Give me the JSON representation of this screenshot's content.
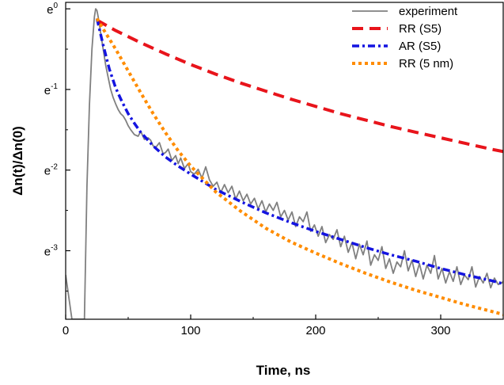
{
  "chart_data": {
    "type": "line",
    "title": "",
    "xlabel": "Time, ns",
    "ylabel": "Δn(t)/Δn(0)",
    "y_scale": "ln",
    "xlim": [
      0,
      350
    ],
    "ylim": [
      -3.85,
      0.08
    ],
    "x_ticks": [
      0,
      100,
      200,
      300
    ],
    "x_tick_labels": [
      "0",
      "100",
      "200",
      "300"
    ],
    "y_ticks": [
      0,
      -1,
      -2,
      -3
    ],
    "y_tick_labels": [
      {
        "base": "e",
        "exp": "0"
      },
      {
        "base": "e",
        "exp": "-1"
      },
      {
        "base": "e",
        "exp": "-2"
      },
      {
        "base": "e",
        "exp": "-3"
      }
    ],
    "grid": false,
    "legend_position": "top-right",
    "series": [
      {
        "name": "experiment",
        "color": "#808080",
        "style": "solid",
        "x": [
          0,
          5,
          10,
          15,
          17,
          19,
          21,
          23,
          24,
          25,
          26,
          27,
          28,
          29,
          30,
          32,
          34,
          36,
          38,
          40,
          42,
          44,
          46,
          48,
          50,
          52,
          55,
          58,
          60,
          63,
          66,
          68,
          70,
          72,
          75,
          78,
          80,
          82,
          85,
          88,
          90,
          92,
          95,
          98,
          100,
          103,
          106,
          109,
          112,
          115,
          118,
          121,
          124,
          127,
          130,
          133,
          136,
          139,
          142,
          145,
          148,
          151,
          154,
          157,
          160,
          163,
          166,
          169,
          172,
          175,
          178,
          181,
          184,
          187,
          190,
          193,
          196,
          199,
          202,
          205,
          208,
          211,
          214,
          217,
          220,
          223,
          226,
          229,
          232,
          235,
          238,
          241,
          244,
          247,
          250,
          253,
          256,
          259,
          262,
          265,
          268,
          271,
          274,
          277,
          280,
          283,
          286,
          289,
          292,
          295,
          298,
          301,
          304,
          307,
          310,
          313,
          316,
          319,
          322,
          325,
          328,
          331,
          334,
          337,
          340,
          343,
          346,
          349,
          350
        ],
        "y": [
          -3.3,
          -3.85,
          -3.85,
          -3.85,
          -2.2,
          -1.2,
          -0.5,
          -0.1,
          0.0,
          -0.02,
          -0.1,
          -0.2,
          -0.3,
          -0.4,
          -0.5,
          -0.7,
          -0.85,
          -1.0,
          -1.1,
          -1.18,
          -1.25,
          -1.3,
          -1.33,
          -1.38,
          -1.45,
          -1.5,
          -1.56,
          -1.58,
          -1.52,
          -1.62,
          -1.6,
          -1.63,
          -1.7,
          -1.72,
          -1.66,
          -1.8,
          -1.78,
          -1.74,
          -1.88,
          -1.82,
          -1.92,
          -1.85,
          -1.98,
          -1.92,
          -2.02,
          -2.05,
          -1.99,
          -2.1,
          -1.96,
          -2.12,
          -2.2,
          -2.15,
          -2.28,
          -2.18,
          -2.28,
          -2.2,
          -2.36,
          -2.26,
          -2.38,
          -2.3,
          -2.42,
          -2.35,
          -2.48,
          -2.38,
          -2.52,
          -2.42,
          -2.5,
          -2.4,
          -2.58,
          -2.5,
          -2.62,
          -2.52,
          -2.7,
          -2.58,
          -2.64,
          -2.52,
          -2.76,
          -2.68,
          -2.82,
          -2.7,
          -2.9,
          -2.8,
          -2.86,
          -2.74,
          -2.95,
          -2.82,
          -3.02,
          -2.9,
          -3.1,
          -2.92,
          -3.05,
          -2.88,
          -3.18,
          -3.05,
          -3.12,
          -2.95,
          -3.22,
          -3.1,
          -3.28,
          -3.14,
          -3.2,
          -3.0,
          -3.25,
          -3.12,
          -3.32,
          -3.16,
          -3.35,
          -3.18,
          -3.28,
          -3.06,
          -3.35,
          -3.22,
          -3.4,
          -3.26,
          -3.38,
          -3.2,
          -3.42,
          -3.3,
          -3.36,
          -3.2,
          -3.45,
          -3.32,
          -3.4,
          -3.28,
          -3.46,
          -3.34,
          -3.42,
          -3.4,
          -3.38
        ]
      },
      {
        "name": "RR (S5)",
        "color": "#e8141b",
        "style": "dashed",
        "x": [
          25,
          40,
          60,
          80,
          100,
          120,
          140,
          160,
          180,
          200,
          220,
          240,
          260,
          280,
          300,
          320,
          340,
          350
        ],
        "y": [
          -0.14,
          -0.27,
          -0.42,
          -0.56,
          -0.69,
          -0.81,
          -0.92,
          -1.02,
          -1.12,
          -1.21,
          -1.3,
          -1.38,
          -1.46,
          -1.53,
          -1.6,
          -1.67,
          -1.74,
          -1.77
        ]
      },
      {
        "name": "AR (S5)",
        "color": "#1414e0",
        "style": "dashdot",
        "x": [
          25,
          30,
          35,
          40,
          45,
          50,
          55,
          60,
          70,
          80,
          90,
          100,
          120,
          140,
          160,
          180,
          200,
          220,
          240,
          260,
          280,
          300,
          320,
          340,
          350
        ],
        "y": [
          -0.12,
          -0.45,
          -0.75,
          -0.98,
          -1.15,
          -1.3,
          -1.42,
          -1.53,
          -1.7,
          -1.84,
          -1.95,
          -2.05,
          -2.24,
          -2.39,
          -2.53,
          -2.65,
          -2.76,
          -2.86,
          -2.96,
          -3.05,
          -3.13,
          -3.22,
          -3.3,
          -3.37,
          -3.41
        ]
      },
      {
        "name": "RR (5 nm)",
        "color": "#ff8c00",
        "style": "dotted",
        "x": [
          25,
          30,
          40,
          50,
          60,
          70,
          80,
          90,
          100,
          120,
          140,
          160,
          180,
          200,
          220,
          240,
          260,
          280,
          300,
          320,
          340,
          350
        ],
        "y": [
          -0.12,
          -0.25,
          -0.5,
          -0.77,
          -1.04,
          -1.3,
          -1.54,
          -1.76,
          -1.95,
          -2.27,
          -2.51,
          -2.72,
          -2.89,
          -3.03,
          -3.16,
          -3.28,
          -3.39,
          -3.49,
          -3.58,
          -3.67,
          -3.75,
          -3.79
        ]
      }
    ]
  }
}
